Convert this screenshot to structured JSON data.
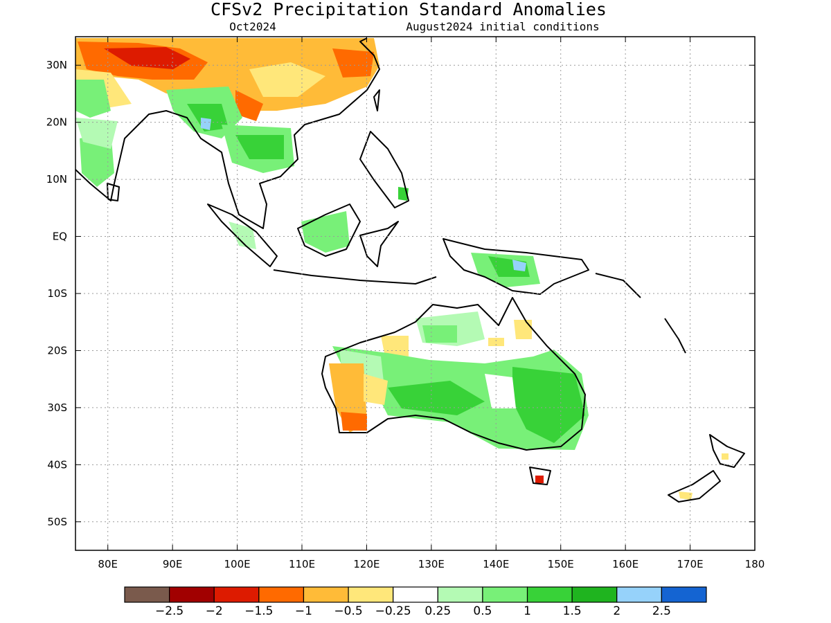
{
  "title": "CFSv2 Precipitation Standard Anomalies",
  "subtitle_left": "Oct2024",
  "subtitle_right": "August2024 initial conditions",
  "map": {
    "lon_range": [
      75,
      180
    ],
    "lat_range": [
      -55,
      35
    ],
    "lat_ticks": [
      "30N",
      "20N",
      "10N",
      "EQ",
      "10S",
      "20S",
      "30S",
      "40S",
      "50S"
    ],
    "lon_ticks": [
      "80E",
      "90E",
      "100E",
      "110E",
      "120E",
      "130E",
      "140E",
      "150E",
      "160E",
      "170E",
      "180"
    ],
    "gridlines": "dotted"
  },
  "colorbar": {
    "colors": [
      "#7a5a4c",
      "#a10000",
      "#dd1b00",
      "#ff6a00",
      "#ffbb38",
      "#ffe77a",
      "#ffffff",
      "#b4fab4",
      "#78f078",
      "#38d238",
      "#1fb41f",
      "#96d2fa",
      "#1464d2"
    ],
    "labels": [
      "−2.5",
      "−2",
      "−1.5",
      "−1",
      "−0.5",
      "−0.25",
      "0.25",
      "0.5",
      "1",
      "1.5",
      "2",
      "2.5"
    ]
  },
  "colors": {
    "strong_dry": "#dd1b00",
    "moderate_dry": "#ff6a00",
    "dry": "#ffbb38",
    "slight_dry": "#ffe77a",
    "slight_wet": "#b4fab4",
    "wet": "#78f078",
    "moderate_wet": "#38d238",
    "strong_wet": "#1fb41f",
    "very_wet": "#96d2fa"
  }
}
